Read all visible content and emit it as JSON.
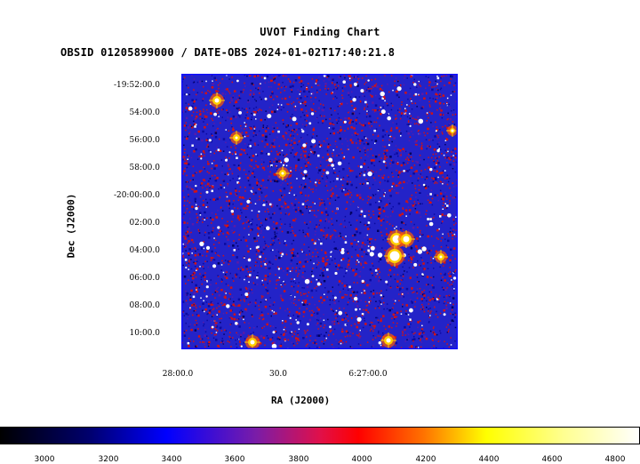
{
  "chart": {
    "title": "UVOT Finding Chart",
    "subtitle": "OBSID 01205899000 / DATE-OBS 2024-01-02T17:40:21.8",
    "ylabel": "Dec (J2000)",
    "xlabel": "RA (J2000)",
    "dec_ticks": [
      "-19:52:00.0",
      "54:00.0",
      "56:00.0",
      "58:00.0",
      "-20:00:00.0",
      "02:00.0",
      "04:00.0",
      "06:00.0",
      "08:00.0",
      "10:00.0"
    ],
    "ra_ticks": [
      "28:00.0",
      "30.0",
      "6:27:00.0"
    ],
    "colorbar_ticks": [
      "3000",
      "3200",
      "3400",
      "3600",
      "3800",
      "4000",
      "4200",
      "4400",
      "4600",
      "4800"
    ],
    "colors": {
      "frame": "#1010ff",
      "background": "#2323c8",
      "noise_red": "#d41212",
      "star": "#ffffff",
      "star_core": "#ffd000"
    }
  },
  "chart_data": {
    "type": "heatmap",
    "title": "UVOT Finding Chart",
    "xlabel": "RA (J2000)",
    "ylabel": "Dec (J2000)",
    "colorbar": {
      "min": 2900,
      "max": 4850,
      "ticks": [
        3000,
        3200,
        3400,
        3600,
        3800,
        4000,
        4200,
        4400,
        4600,
        4800
      ]
    }
  }
}
